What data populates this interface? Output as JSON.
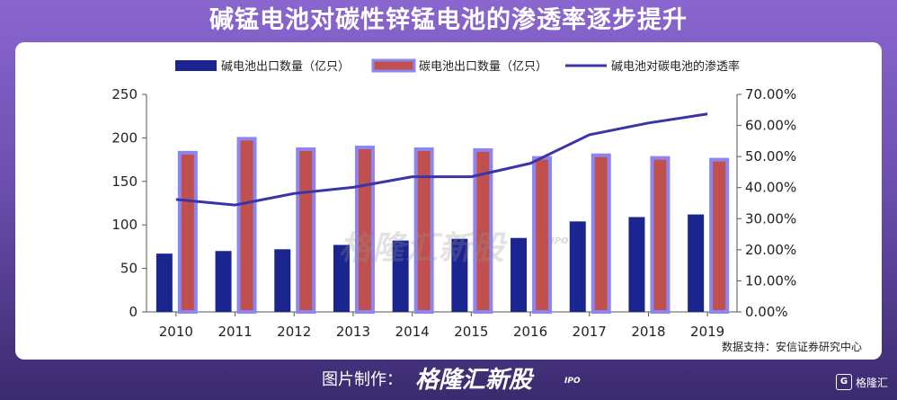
{
  "title": "碱锰电池对碳性锌锰电池的渗透率逐步提升",
  "source": "数据支持：安信证券研究中心",
  "footer": {
    "label": "图片制作：",
    "logo": "格隆汇新股",
    "logo_sub": "IPO"
  },
  "brand": {
    "icon": "G",
    "name": "格隆汇"
  },
  "watermark": {
    "text": "格隆汇新股",
    "sub": "IPO"
  },
  "colors": {
    "alkaline_bar": "#1a2590",
    "carbon_bar_fill": "#c0504d",
    "carbon_bar_border": "#8c86f2",
    "line": "#3b34a8",
    "axis": "#555555"
  },
  "chart_data": {
    "type": "bar",
    "categories": [
      "2010",
      "2011",
      "2012",
      "2013",
      "2014",
      "2015",
      "2016",
      "2017",
      "2018",
      "2019"
    ],
    "series": [
      {
        "name": "碱电池出口数量（亿只）",
        "type": "bar",
        "axis": "left",
        "values": [
          67,
          70,
          72,
          77,
          82,
          84,
          85,
          104,
          109,
          112
        ]
      },
      {
        "name": "碳电池出口数量（亿只）",
        "type": "bar",
        "axis": "left",
        "values": [
          183,
          199,
          187,
          189,
          187,
          186,
          177,
          180,
          177,
          175
        ]
      },
      {
        "name": "碱电池对碳电池的渗透率",
        "type": "line",
        "axis": "right",
        "values": [
          0.362,
          0.344,
          0.381,
          0.401,
          0.435,
          0.435,
          0.478,
          0.57,
          0.608,
          0.637
        ]
      }
    ],
    "ylim": [
      0,
      250
    ],
    "yticks": [
      "0",
      "50",
      "100",
      "150",
      "200",
      "250"
    ],
    "y2lim": [
      0,
      0.7
    ],
    "y2ticks": [
      "0.00%",
      "10.00%",
      "20.00%",
      "30.00%",
      "40.00%",
      "50.00%",
      "60.00%",
      "70.00%"
    ],
    "grid": false,
    "legend_position": "top"
  }
}
